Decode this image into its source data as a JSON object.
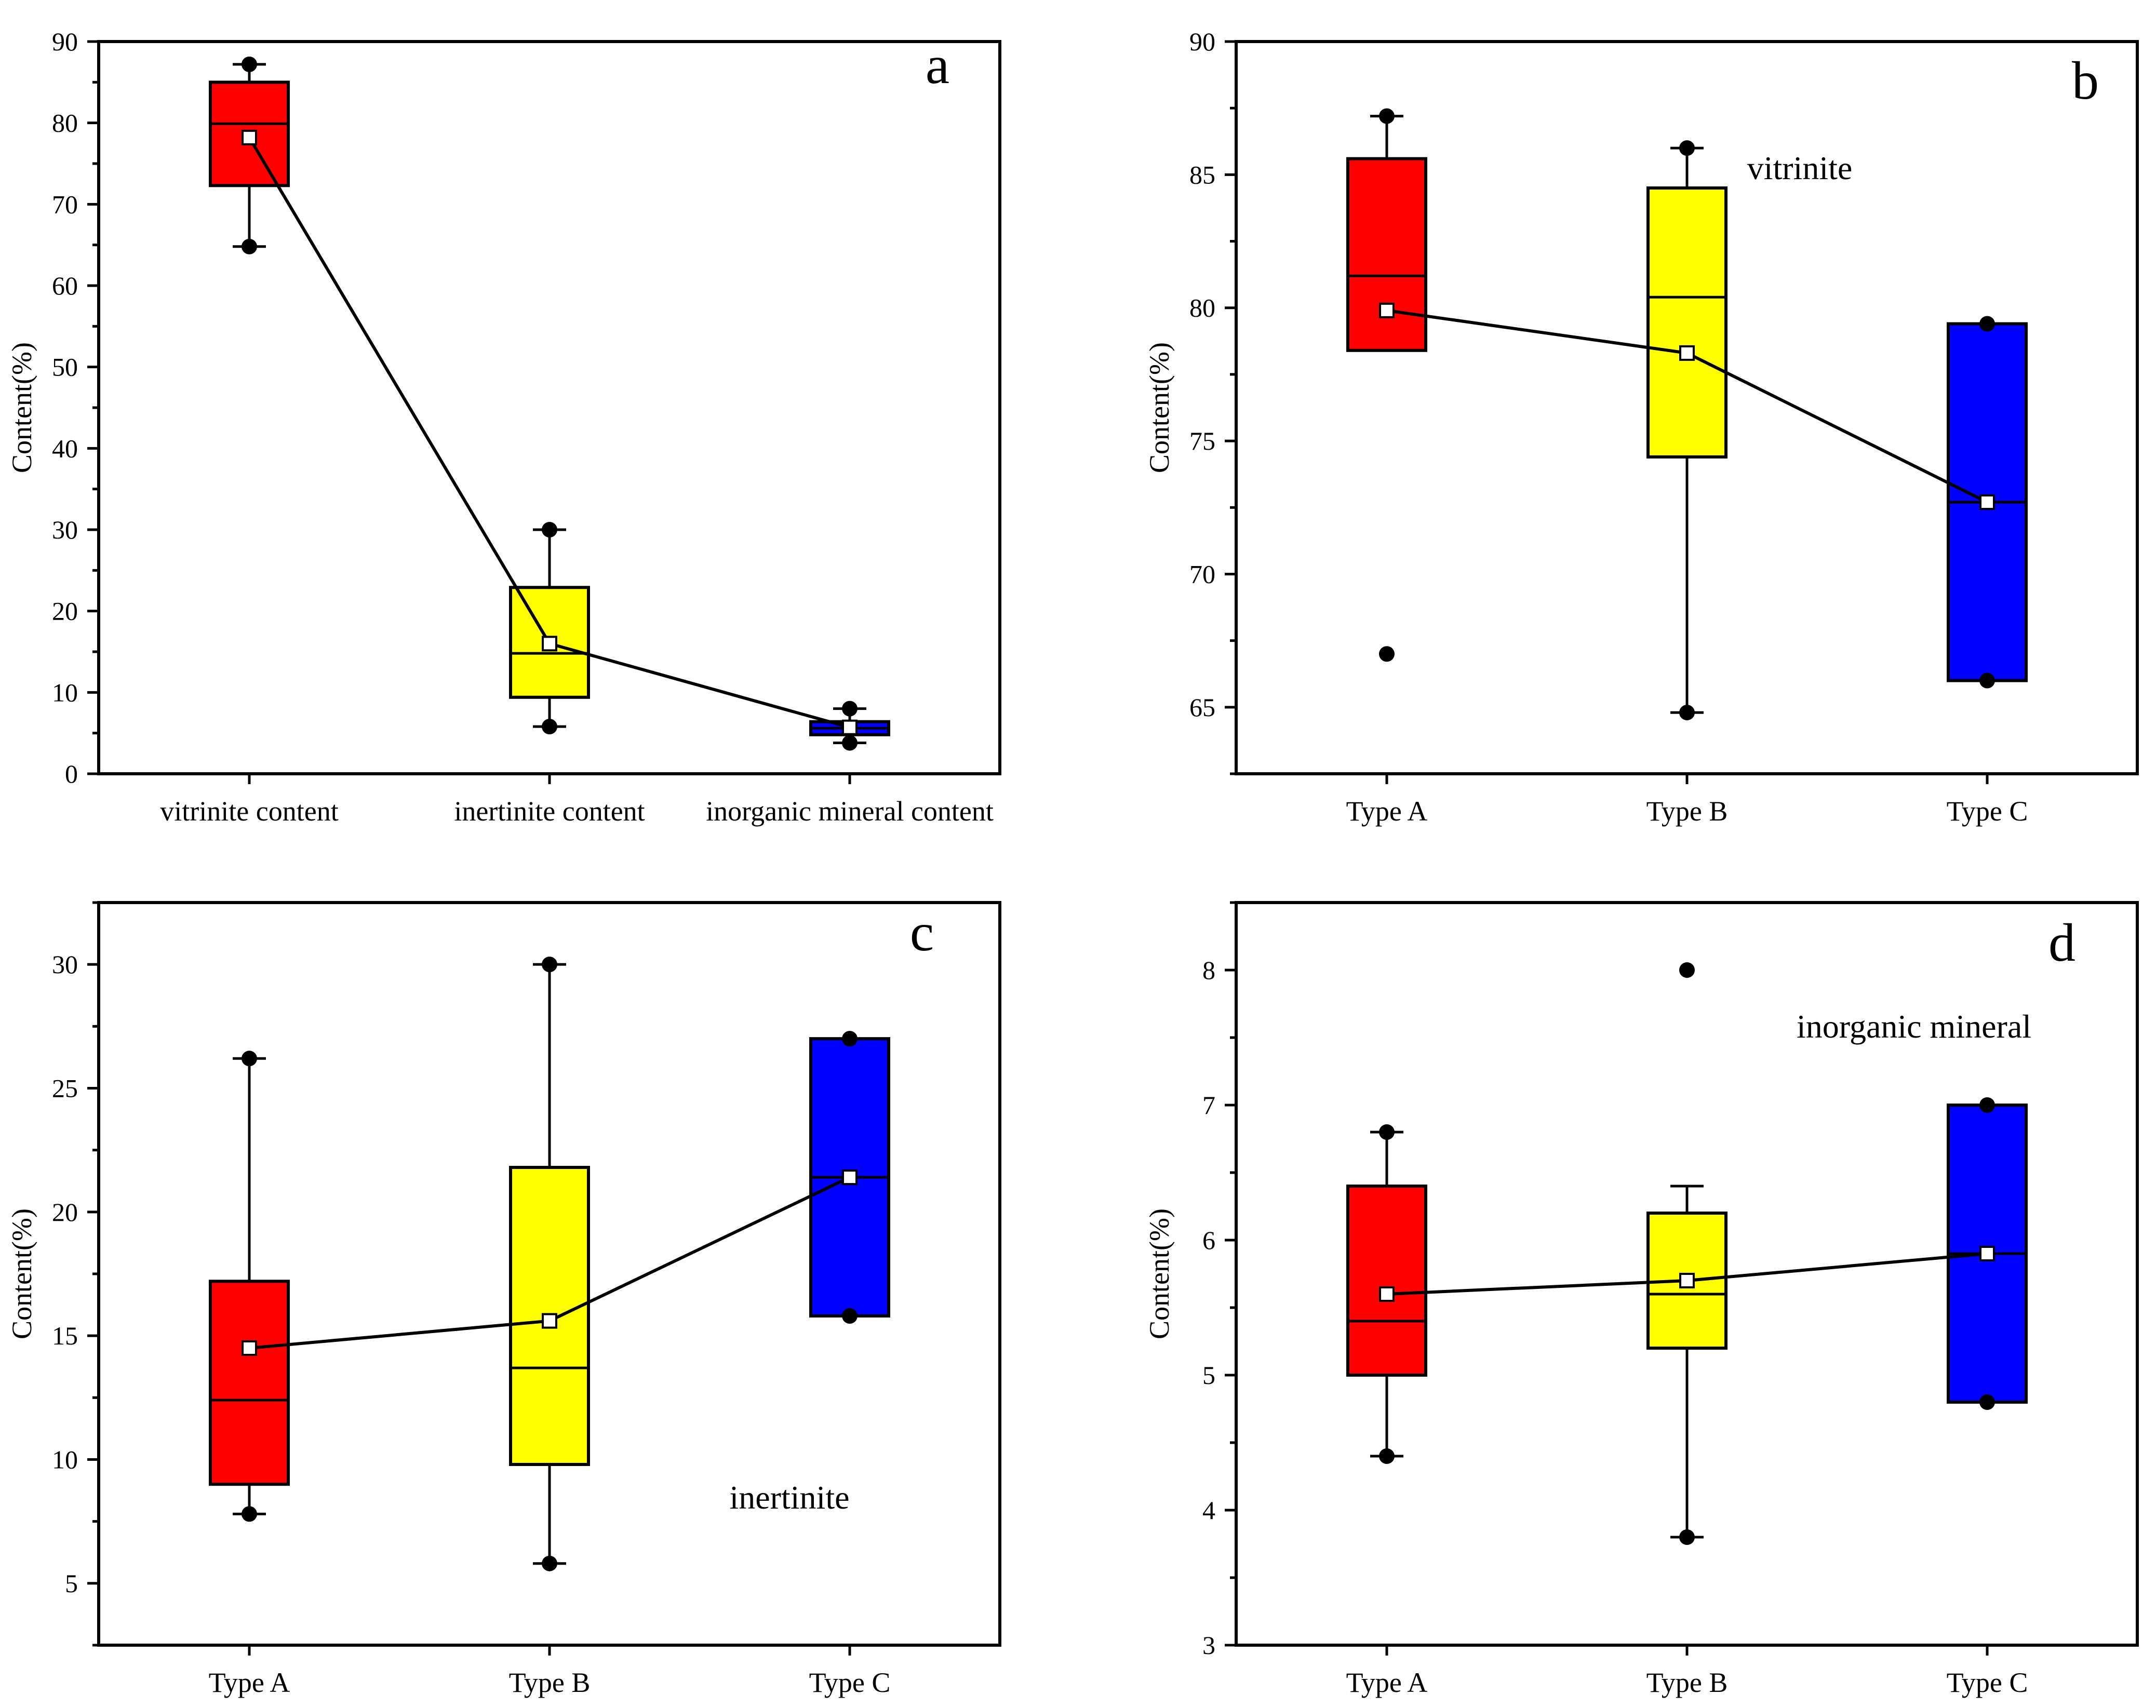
{
  "colors": {
    "typeA": "#ff0000",
    "typeB": "#ffff00",
    "typeC": "#0000ff"
  },
  "chart_data": [
    {
      "panel": "a",
      "type": "box",
      "ylabel": "Content(%)",
      "ylim": [
        0,
        90
      ],
      "yticks": [
        0,
        10,
        20,
        30,
        40,
        50,
        60,
        70,
        80,
        90
      ],
      "minorStep": 5,
      "categories": [
        "vitrinite content",
        "inertinite content",
        "inorganic mineral content"
      ],
      "annotation": "",
      "boxes": [
        {
          "q1": 72.3,
          "median": 79.9,
          "q3": 85.0,
          "whiskerLow": 64.8,
          "whiskerHigh": 87.2,
          "mean": 78.2,
          "points": [
            64.8,
            87.2
          ],
          "color": "#ff0000"
        },
        {
          "q1": 9.4,
          "median": 14.8,
          "q3": 22.9,
          "whiskerLow": 5.8,
          "whiskerHigh": 30.0,
          "mean": 16.0,
          "points": [
            5.8,
            30.0
          ],
          "color": "#ffff00"
        },
        {
          "q1": 4.8,
          "median": 5.6,
          "q3": 6.4,
          "whiskerLow": 3.8,
          "whiskerHigh": 8.0,
          "mean": 5.7,
          "points": [
            3.8,
            8.0
          ],
          "color": "#0000ff"
        }
      ]
    },
    {
      "panel": "b",
      "type": "box",
      "ylabel": "Content(%)",
      "ylim": [
        62.5,
        90
      ],
      "yticks": [
        65,
        70,
        75,
        80,
        85,
        90
      ],
      "minorStep": 2.5,
      "categories": [
        "Type A",
        "Type B",
        "Type C"
      ],
      "annotation": "vitrinite",
      "boxes": [
        {
          "q1": 78.4,
          "median": 81.2,
          "q3": 85.6,
          "whiskerLow": 78.4,
          "whiskerHigh": 87.2,
          "mean": 79.9,
          "points": [
            67.0,
            87.2
          ],
          "color": "#ff0000"
        },
        {
          "q1": 74.4,
          "median": 80.4,
          "q3": 84.5,
          "whiskerLow": 64.8,
          "whiskerHigh": 86.0,
          "mean": 78.3,
          "points": [
            64.8,
            86.0
          ],
          "color": "#ffff00"
        },
        {
          "q1": 66.0,
          "median": 72.7,
          "q3": 79.4,
          "whiskerLow": 66.0,
          "whiskerHigh": 79.4,
          "mean": 72.7,
          "points": [
            66.0,
            79.4
          ],
          "color": "#0000ff"
        }
      ]
    },
    {
      "panel": "c",
      "type": "box",
      "ylabel": "Content(%)",
      "ylim": [
        2.5,
        32.5
      ],
      "yticks": [
        5,
        10,
        15,
        20,
        25,
        30
      ],
      "minorStep": 2.5,
      "categories": [
        "Type A",
        "Type B",
        "Type C"
      ],
      "annotation": "inertinite",
      "boxes": [
        {
          "q1": 9.0,
          "median": 12.4,
          "q3": 17.2,
          "whiskerLow": 7.8,
          "whiskerHigh": 26.2,
          "mean": 14.5,
          "points": [
            7.8,
            26.2
          ],
          "color": "#ff0000"
        },
        {
          "q1": 9.8,
          "median": 13.7,
          "q3": 21.8,
          "whiskerLow": 5.8,
          "whiskerHigh": 30.0,
          "mean": 15.6,
          "points": [
            5.8,
            30.0
          ],
          "color": "#ffff00"
        },
        {
          "q1": 15.8,
          "median": 21.4,
          "q3": 27.0,
          "whiskerLow": 15.8,
          "whiskerHigh": 27.0,
          "mean": 21.4,
          "points": [
            15.8,
            27.0
          ],
          "color": "#0000ff"
        }
      ]
    },
    {
      "panel": "d",
      "type": "box",
      "ylabel": "Content(%)",
      "ylim": [
        3,
        8.5
      ],
      "yticks": [
        3,
        4,
        5,
        6,
        7,
        8
      ],
      "minorStep": 0.5,
      "categories": [
        "Type A",
        "Type B",
        "Type C"
      ],
      "annotation": "inorganic mineral",
      "boxes": [
        {
          "q1": 5.0,
          "median": 5.4,
          "q3": 6.4,
          "whiskerLow": 4.4,
          "whiskerHigh": 6.8,
          "mean": 5.6,
          "points": [
            4.4,
            6.8
          ],
          "color": "#ff0000"
        },
        {
          "q1": 5.2,
          "median": 5.6,
          "q3": 6.2,
          "whiskerLow": 3.8,
          "whiskerHigh": 6.4,
          "mean": 5.7,
          "points": [
            3.8,
            8.0
          ],
          "color": "#ffff00"
        },
        {
          "q1": 4.8,
          "median": 5.9,
          "q3": 7.0,
          "whiskerLow": 4.8,
          "whiskerHigh": 7.0,
          "mean": 5.9,
          "points": [
            4.8,
            7.0
          ],
          "color": "#0000ff"
        }
      ]
    }
  ]
}
